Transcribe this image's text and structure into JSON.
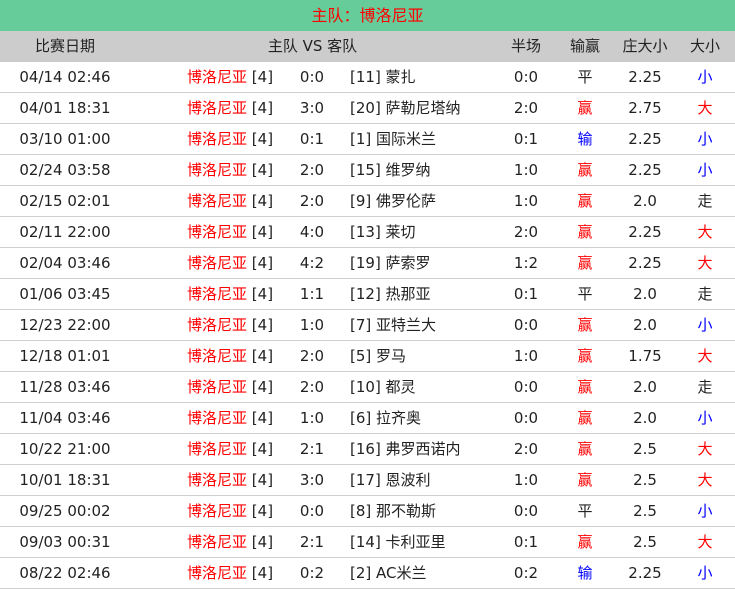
{
  "title": "主队：博洛尼亚",
  "colors": {
    "title_bg": "#66cc99",
    "header_bg": "#cccccc",
    "win": "#ff0000",
    "lose": "#0000ff",
    "big": "#ff0000",
    "small": "#0000ff"
  },
  "headers": {
    "date": "比赛日期",
    "teams": "主队 VS 客队",
    "half": "半场",
    "result": "输赢",
    "line": "庄大小",
    "size": "大小"
  },
  "rows": [
    {
      "date": "04/14 02:46",
      "home": "博洛尼亚",
      "home_rank": "[4]",
      "score": "0:0",
      "away": "[11] 蒙扎",
      "half": "0:0",
      "result": "平",
      "line": "2.25",
      "size": "小"
    },
    {
      "date": "04/01 18:31",
      "home": "博洛尼亚",
      "home_rank": "[4]",
      "score": "3:0",
      "away": "[20] 萨勒尼塔纳",
      "half": "2:0",
      "result": "赢",
      "line": "2.75",
      "size": "大"
    },
    {
      "date": "03/10 01:00",
      "home": "博洛尼亚",
      "home_rank": "[4]",
      "score": "0:1",
      "away": "[1] 国际米兰",
      "half": "0:1",
      "result": "输",
      "line": "2.25",
      "size": "小"
    },
    {
      "date": "02/24 03:58",
      "home": "博洛尼亚",
      "home_rank": "[4]",
      "score": "2:0",
      "away": "[15] 维罗纳",
      "half": "1:0",
      "result": "赢",
      "line": "2.25",
      "size": "小"
    },
    {
      "date": "02/15 02:01",
      "home": "博洛尼亚",
      "home_rank": "[4]",
      "score": "2:0",
      "away": "[9] 佛罗伦萨",
      "half": "1:0",
      "result": "赢",
      "line": "2.0",
      "size": "走"
    },
    {
      "date": "02/11 22:00",
      "home": "博洛尼亚",
      "home_rank": "[4]",
      "score": "4:0",
      "away": "[13] 莱切",
      "half": "2:0",
      "result": "赢",
      "line": "2.25",
      "size": "大"
    },
    {
      "date": "02/04 03:46",
      "home": "博洛尼亚",
      "home_rank": "[4]",
      "score": "4:2",
      "away": "[19] 萨索罗",
      "half": "1:2",
      "result": "赢",
      "line": "2.25",
      "size": "大"
    },
    {
      "date": "01/06 03:45",
      "home": "博洛尼亚",
      "home_rank": "[4]",
      "score": "1:1",
      "away": "[12] 热那亚",
      "half": "0:1",
      "result": "平",
      "line": "2.0",
      "size": "走"
    },
    {
      "date": "12/23 22:00",
      "home": "博洛尼亚",
      "home_rank": "[4]",
      "score": "1:0",
      "away": "[7] 亚特兰大",
      "half": "0:0",
      "result": "赢",
      "line": "2.0",
      "size": "小"
    },
    {
      "date": "12/18 01:01",
      "home": "博洛尼亚",
      "home_rank": "[4]",
      "score": "2:0",
      "away": "[5] 罗马",
      "half": "1:0",
      "result": "赢",
      "line": "1.75",
      "size": "大"
    },
    {
      "date": "11/28 03:46",
      "home": "博洛尼亚",
      "home_rank": "[4]",
      "score": "2:0",
      "away": "[10] 都灵",
      "half": "0:0",
      "result": "赢",
      "line": "2.0",
      "size": "走"
    },
    {
      "date": "11/04 03:46",
      "home": "博洛尼亚",
      "home_rank": "[4]",
      "score": "1:0",
      "away": "[6] 拉齐奥",
      "half": "0:0",
      "result": "赢",
      "line": "2.0",
      "size": "小"
    },
    {
      "date": "10/22 21:00",
      "home": "博洛尼亚",
      "home_rank": "[4]",
      "score": "2:1",
      "away": "[16] 弗罗西诺内",
      "half": "2:0",
      "result": "赢",
      "line": "2.5",
      "size": "大"
    },
    {
      "date": "10/01 18:31",
      "home": "博洛尼亚",
      "home_rank": "[4]",
      "score": "3:0",
      "away": "[17] 恩波利",
      "half": "1:0",
      "result": "赢",
      "line": "2.5",
      "size": "大"
    },
    {
      "date": "09/25 00:02",
      "home": "博洛尼亚",
      "home_rank": "[4]",
      "score": "0:0",
      "away": "[8] 那不勒斯",
      "half": "0:0",
      "result": "平",
      "line": "2.5",
      "size": "小"
    },
    {
      "date": "09/03 00:31",
      "home": "博洛尼亚",
      "home_rank": "[4]",
      "score": "2:1",
      "away": "[14] 卡利亚里",
      "half": "0:1",
      "result": "赢",
      "line": "2.5",
      "size": "大"
    },
    {
      "date": "08/22 02:46",
      "home": "博洛尼亚",
      "home_rank": "[4]",
      "score": "0:2",
      "away": "[2] AC米兰",
      "half": "0:2",
      "result": "输",
      "line": "2.25",
      "size": "小"
    }
  ]
}
